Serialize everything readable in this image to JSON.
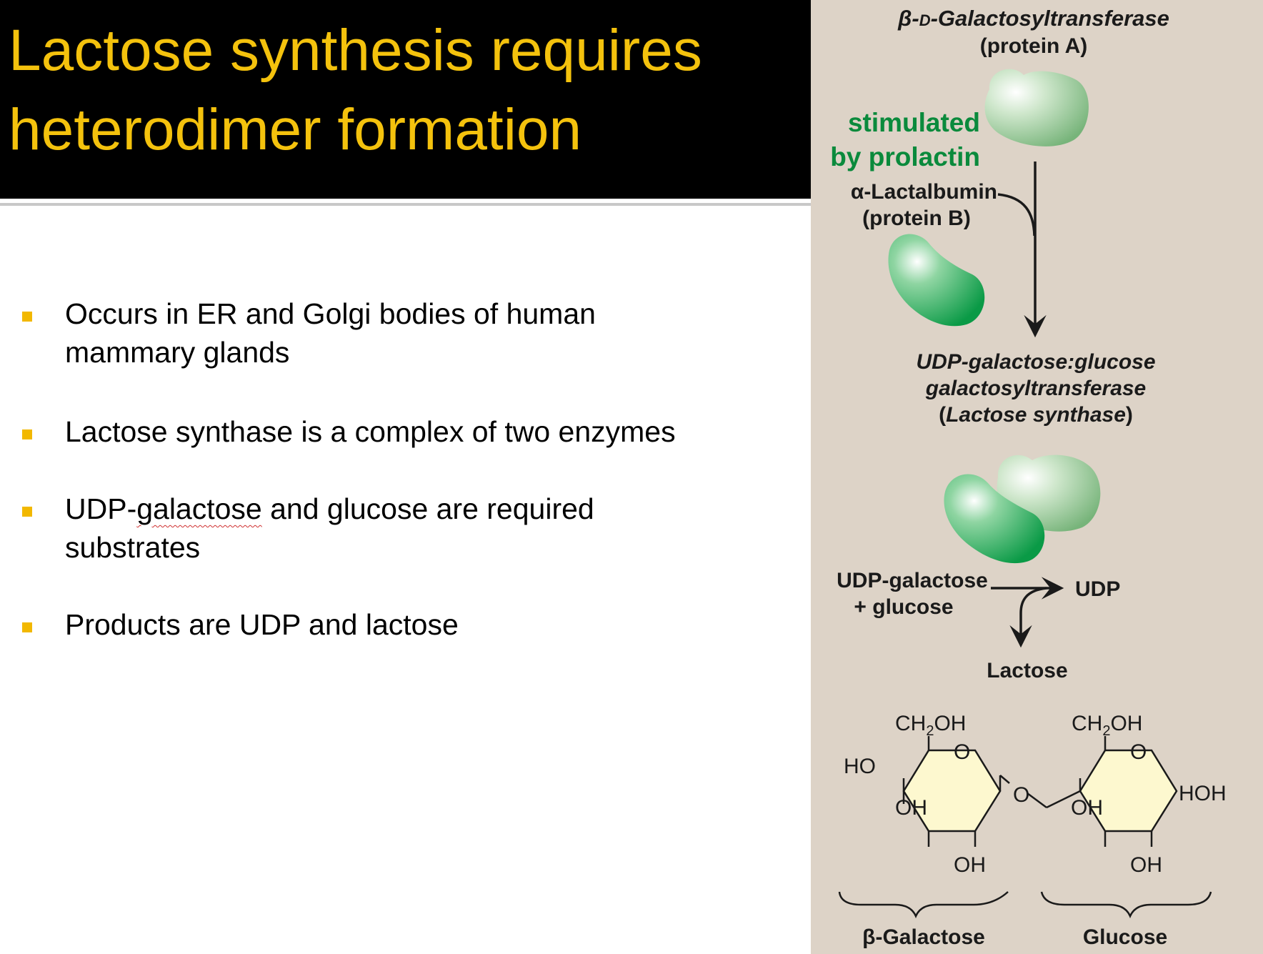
{
  "slide": {
    "title_lines": [
      "Lactose synthesis requires",
      "heterodimer formation"
    ],
    "bullets": [
      {
        "line1": "Occurs in ER and Golgi bodies of human",
        "line2": "mammary glands"
      },
      {
        "line1": "Lactose synthase is a complex of two enzymes"
      },
      {
        "line1_before": "UDP-",
        "line1_flagged": "galactose",
        "line1_after": " and glucose are required",
        "line2": "substrates"
      },
      {
        "line1": "Products are UDP and lactose"
      }
    ]
  },
  "figure": {
    "protein_a_name": "β-D-Galactosyltransferase",
    "protein_a_name_prefix": "β-",
    "protein_a_name_smallcaps": "D",
    "protein_a_name_rest": "-Galactosyltransferase",
    "protein_a_label": "(protein A)",
    "stimulated_line1": "stimulated",
    "stimulated_line2": "by prolactin",
    "protein_b_name": "α-Lactalbumin",
    "protein_b_label": "(protein B)",
    "enzyme_line1": "UDP-galactose:glucose",
    "enzyme_line2": "galactosyltransferase",
    "enzyme_line3_open": "(",
    "enzyme_line3_name": "Lactose synthase",
    "enzyme_line3_close": ")",
    "substrate_line1": "UDP-galactose",
    "substrate_line2": "+ glucose",
    "product_udp": "UDP",
    "product_lactose": "Lactose",
    "structure_labels": {
      "gal_ch2oh": "CH2OH",
      "gal_ring_o": "O",
      "gal_ho": "HO",
      "gal_oh_inner": "OH",
      "gal_oh_bottom": "OH",
      "bridge_o": "O",
      "glc_ch2oh": "CH2OH",
      "glc_ring_o": "O",
      "glc_oh_inner": "OH",
      "glc_oh_bottom": "OH",
      "glc_hoh": "HOH"
    },
    "sugar_name_galactose": "β-Galactose",
    "sugar_name_glucose": "Glucose"
  },
  "colors": {
    "title_text": "#f4c20d",
    "title_background": "#000000",
    "bullet_marker": "#f2b800",
    "figure_background": "#ddd3c7",
    "protein_a": "#8cc28f",
    "protein_b": "#10a04a",
    "prolactin_text": "#0a8a3c",
    "sugar_ring_fill": "#fdf8cf"
  }
}
